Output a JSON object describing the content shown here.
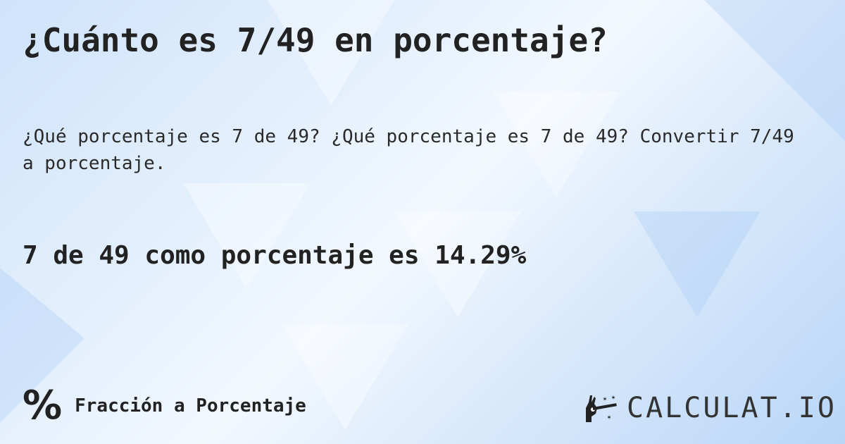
{
  "title": "¿Cuánto es 7/49 en porcentaje?",
  "subtitle": "¿Qué porcentaje es 7 de 49? ¿Qué porcentaje es 7 de 49? Convertir 7/49 a porcentaje.",
  "answer": "7 de 49 como porcentaje es 14.29%",
  "category": {
    "icon": "percent-icon",
    "symbol": "%",
    "label": "Fracción a Porcentaje"
  },
  "logo": {
    "icon": "magic-hand-wand-icon",
    "text": "CALCULAT.IO"
  }
}
